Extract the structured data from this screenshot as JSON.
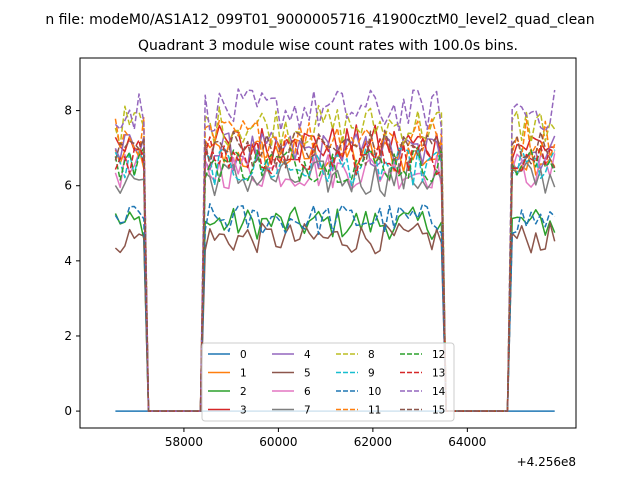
{
  "chart_data": {
    "type": "line",
    "suptitle": "n file: modeM0/AS1A12_099T01_9000005716_41900cztM0_level2_quad_clean",
    "title": "Quadrant 3 module wise count rates with 100.0s bins.",
    "xlabel": "",
    "ylabel": "",
    "x_offset_label": "+4.256e8",
    "xlim": [
      55800,
      66300
    ],
    "ylim": [
      -0.45,
      9.4
    ],
    "xticks": [
      58000,
      60000,
      62000,
      64000
    ],
    "xtick_labels": [
      "58000",
      "60000",
      "62000",
      "64000"
    ],
    "yticks": [
      0,
      2,
      4,
      6,
      8
    ],
    "ytick_labels": [
      "0",
      "2",
      "4",
      "6",
      "8"
    ],
    "grid": false,
    "legend_location": "lower-center",
    "legend_columns": 4,
    "bin_width_s": 100,
    "x_start": 56550,
    "segments": [
      [
        56550,
        57150
      ],
      [
        58450,
        63450
      ],
      [
        64950,
        65850
      ]
    ],
    "zero_baseline_module": "0",
    "series": [
      {
        "name": "0",
        "color": "#1f77b4",
        "style": "solid",
        "level": 0.0
      },
      {
        "name": "1",
        "color": "#ff7f0e",
        "style": "solid",
        "level": 6.8
      },
      {
        "name": "2",
        "color": "#2ca02c",
        "style": "solid",
        "level": 5.0
      },
      {
        "name": "3",
        "color": "#d62728",
        "style": "solid",
        "level": 7.1
      },
      {
        "name": "4",
        "color": "#9467bd",
        "style": "solid",
        "level": 6.9
      },
      {
        "name": "5",
        "color": "#8c564b",
        "style": "solid",
        "level": 4.6
      },
      {
        "name": "6",
        "color": "#e377c2",
        "style": "solid",
        "level": 6.4
      },
      {
        "name": "7",
        "color": "#7f7f7f",
        "style": "solid",
        "level": 6.2
      },
      {
        "name": "8",
        "color": "#bcbd22",
        "style": "dashed",
        "level": 7.6
      },
      {
        "name": "9",
        "color": "#17becf",
        "style": "dashed",
        "level": 6.5
      },
      {
        "name": "10",
        "color": "#1f77b4",
        "style": "dashed",
        "level": 5.1
      },
      {
        "name": "11",
        "color": "#ff7f0e",
        "style": "dashed",
        "level": 7.3
      },
      {
        "name": "12",
        "color": "#2ca02c",
        "style": "dashed",
        "level": 6.6
      },
      {
        "name": "13",
        "color": "#d62728",
        "style": "dashed",
        "level": 6.8
      },
      {
        "name": "14",
        "color": "#9467bd",
        "style": "dashed",
        "level": 8.0
      },
      {
        "name": "15",
        "color": "#8c564b",
        "style": "dashed",
        "level": 7.0
      }
    ]
  }
}
